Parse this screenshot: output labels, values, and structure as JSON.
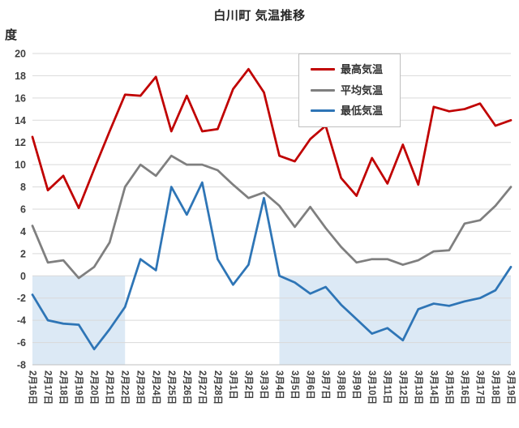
{
  "title": "白川町 気温推移",
  "y_axis_unit": "度",
  "chart_data": {
    "type": "line",
    "title": "白川町 気温推移",
    "xlabel": "",
    "ylabel": "度",
    "ylim": [
      -8,
      20
    ],
    "ytick_step": 2,
    "grid": true,
    "legend_position": "top-right-inside",
    "categories": [
      "2月16日",
      "2月17日",
      "2月18日",
      "2月19日",
      "2月20日",
      "2月21日",
      "2月22日",
      "2月23日",
      "2月24日",
      "2月25日",
      "2月26日",
      "2月27日",
      "2月28日",
      "3月1日",
      "3月2日",
      "3月3日",
      "3月4日",
      "3月5日",
      "3月6日",
      "3月7日",
      "3月8日",
      "3月9日",
      "3月10日",
      "3月11日",
      "3月12日",
      "3月13日",
      "3月14日",
      "3月15日",
      "3月16日",
      "3月17日",
      "3月18日",
      "3月19日"
    ],
    "series": [
      {
        "name": "最高気温",
        "color": "#C00000",
        "values": [
          12.5,
          7.7,
          9.0,
          6.1,
          9.6,
          13.0,
          16.3,
          16.2,
          17.9,
          13.0,
          16.2,
          13.0,
          13.2,
          16.8,
          18.6,
          16.5,
          10.8,
          10.3,
          12.3,
          13.5,
          8.8,
          7.2,
          10.6,
          8.3,
          11.8,
          8.2,
          15.2,
          14.8,
          15.0,
          15.5,
          13.5,
          14.0
        ]
      },
      {
        "name": "平均気温",
        "color": "#7F7F7F",
        "values": [
          4.5,
          1.2,
          1.4,
          -0.2,
          0.8,
          3.0,
          8.0,
          10.0,
          9.0,
          10.8,
          10.0,
          10.0,
          9.5,
          8.2,
          7.0,
          7.5,
          6.3,
          4.4,
          6.2,
          4.3,
          2.6,
          1.2,
          1.5,
          1.5,
          1.0,
          1.4,
          2.2,
          2.3,
          4.7,
          5.0,
          6.3,
          8.0
        ]
      },
      {
        "name": "最低気温",
        "color": "#2E75B6",
        "values": [
          -1.7,
          -4.0,
          -4.3,
          -4.4,
          -6.6,
          -4.8,
          -2.8,
          1.5,
          0.5,
          8.0,
          5.5,
          8.4,
          1.5,
          -0.8,
          1.0,
          7.0,
          0.0,
          -0.6,
          -1.6,
          -1.0,
          -2.6,
          -3.9,
          -5.2,
          -4.7,
          -5.8,
          -3.0,
          -2.5,
          -2.7,
          -2.3,
          -2.0,
          -1.3,
          0.8
        ]
      }
    ],
    "shaded_regions": [
      {
        "from": "2月16日",
        "to": "2月22日",
        "y_from": 0,
        "y_to": -8,
        "color": "#DCE9F5"
      },
      {
        "from": "3月4日",
        "to": "3月19日",
        "y_from": 0,
        "y_to": -8,
        "color": "#DCE9F5"
      }
    ],
    "ytick_labels": [
      "-8",
      "-6",
      "-4",
      "-2",
      "0",
      "2",
      "4",
      "6",
      "8",
      "10",
      "12",
      "14",
      "16",
      "18",
      "20"
    ]
  }
}
